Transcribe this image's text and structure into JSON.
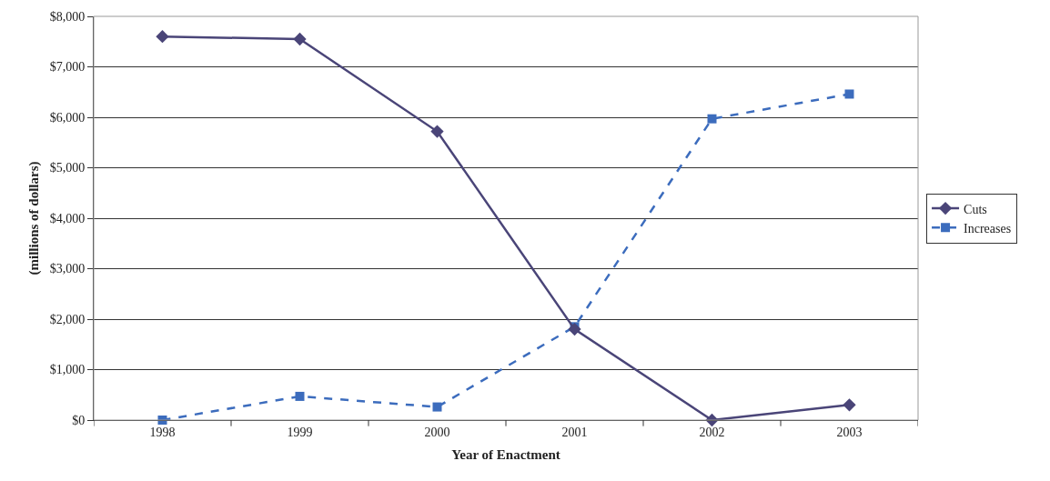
{
  "chart_data": {
    "type": "line",
    "xlabel": "Year of Enactment",
    "ylabel": "(millions of dollars)",
    "categories": [
      "1998",
      "1999",
      "2000",
      "2001",
      "2002",
      "2003"
    ],
    "series": [
      {
        "name": "Cuts",
        "color": "#4a4578",
        "values": [
          7600,
          7550,
          5720,
          1800,
          0,
          300
        ],
        "marker": "diamond",
        "line_style": "solid"
      },
      {
        "name": "Increases",
        "color": "#3c6cbd",
        "values": [
          0,
          470,
          260,
          1850,
          5970,
          6460
        ],
        "marker": "square",
        "line_style": "dashed"
      }
    ],
    "ylim": [
      0,
      8000
    ],
    "yticks": [
      {
        "value": 0,
        "label": "$0"
      },
      {
        "value": 1000,
        "label": "$1,000"
      },
      {
        "value": 2000,
        "label": "$2,000"
      },
      {
        "value": 3000,
        "label": "$3,000"
      },
      {
        "value": 4000,
        "label": "$4,000"
      },
      {
        "value": 5000,
        "label": "$5,000"
      },
      {
        "value": 6000,
        "label": "$6,000"
      },
      {
        "value": 7000,
        "label": "$7,000"
      },
      {
        "value": 8000,
        "label": "$8,000"
      }
    ],
    "grid": "y",
    "legend": "right"
  }
}
